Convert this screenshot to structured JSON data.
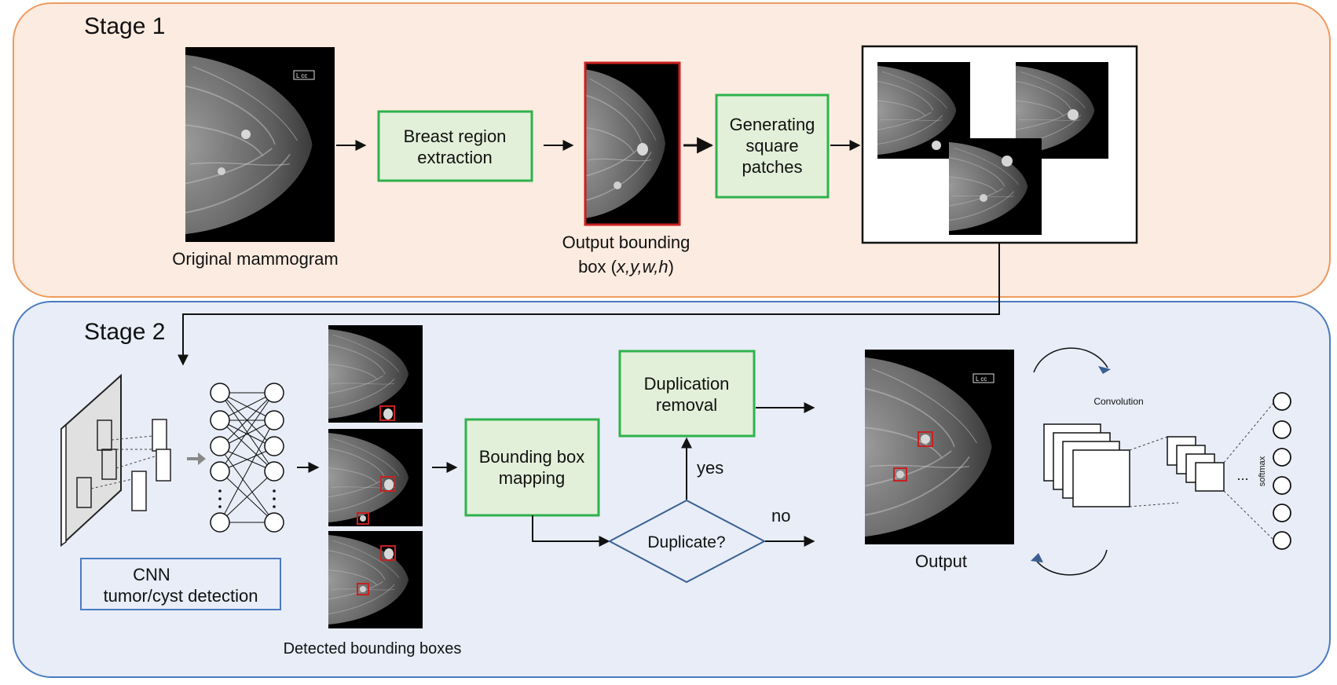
{
  "stage1": {
    "title": "Stage 1",
    "original_caption": "Original mammogram",
    "step_extraction": [
      "Breast region",
      "extraction"
    ],
    "output_caption_line1": "Output bounding",
    "output_caption_box": "box (",
    "output_caption_coords": "x,y,w,h",
    "output_caption_close": ")",
    "step_patches": [
      "Generating",
      "square",
      "patches"
    ],
    "marker_text": "L cc"
  },
  "stage2": {
    "title": "Stage 2",
    "cnn_label": [
      "CNN",
      "tumor/cyst detection"
    ],
    "detected_caption": "Detected bounding boxes",
    "step_mapping": [
      "Bounding box",
      "mapping"
    ],
    "step_dup_removal": [
      "Duplication",
      "removal"
    ],
    "decision": "Duplicate?",
    "yes": "yes",
    "no": "no",
    "output_caption": "Output",
    "conv_label": "Convolution",
    "softmax_label": "softmax",
    "ellipsis": "..."
  },
  "colors": {
    "stage1_fill": "#fcebe0",
    "stage1_border": "#ee9a5e",
    "stage2_fill": "#e8edf7",
    "stage2_border": "#4a7bc0",
    "process_fill": "#e2f0d9",
    "process_border": "#2fb24d",
    "decision_border": "#3b5f93",
    "cnn_box_border": "#4a7bc0",
    "bbox_red": "#c82020"
  }
}
